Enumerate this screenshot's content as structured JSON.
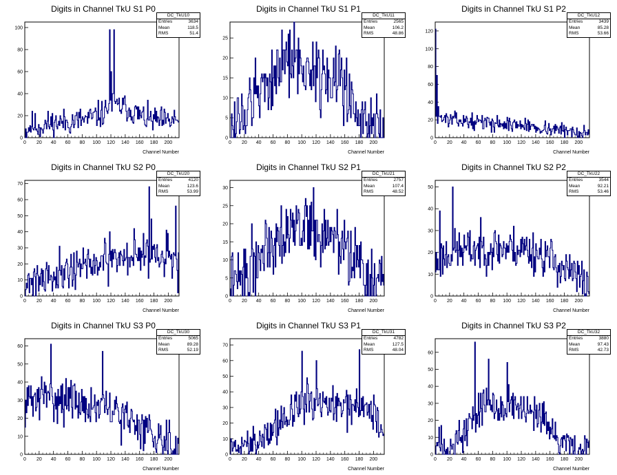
{
  "panel_x_label": "Channel Number",
  "stats_labels": [
    "Entries",
    "Mean",
    "RMS"
  ],
  "line_color": "#000080",
  "chart_data": [
    {
      "type": "histogram",
      "title": "Digits in Channel TkU S1 P0",
      "xlabel": "Channel Number",
      "stats": {
        "name": "DC_TkU10",
        "entries": "3634",
        "mean": "118.5",
        "rms": "51.4"
      },
      "xlim": [
        0,
        215
      ],
      "ylim": [
        0,
        105
      ],
      "xticks": [
        0,
        20,
        40,
        60,
        80,
        100,
        120,
        140,
        160,
        180,
        200
      ],
      "yticks": [
        0,
        20,
        40,
        60,
        80,
        100
      ],
      "spikes": [
        [
          118,
          98
        ],
        [
          124,
          98
        ],
        [
          120,
          60
        ],
        [
          122,
          40
        ]
      ],
      "points": [
        [
          0,
          5
        ],
        [
          10,
          12
        ],
        [
          20,
          10
        ],
        [
          30,
          12
        ],
        [
          40,
          13
        ],
        [
          50,
          14
        ],
        [
          60,
          14
        ],
        [
          70,
          15
        ],
        [
          80,
          16
        ],
        [
          90,
          17
        ],
        [
          100,
          20
        ],
        [
          110,
          22
        ],
        [
          118,
          30
        ],
        [
          130,
          28
        ],
        [
          140,
          28
        ],
        [
          150,
          24
        ],
        [
          160,
          20
        ],
        [
          170,
          17
        ],
        [
          180,
          16
        ],
        [
          190,
          15
        ],
        [
          200,
          14
        ],
        [
          210,
          17
        ],
        [
          215,
          16
        ]
      ],
      "noise": 6,
      "seed": 11
    },
    {
      "type": "histogram",
      "title": "Digits in Channel TkU S1 P1",
      "xlabel": "Channel Number",
      "stats": {
        "name": "DC_TkU11",
        "entries": "2565",
        "mean": "106.2",
        "rms": "48.86"
      },
      "xlim": [
        0,
        215
      ],
      "ylim": [
        0,
        29
      ],
      "xticks": [
        0,
        20,
        40,
        60,
        80,
        100,
        120,
        140,
        160,
        180,
        200
      ],
      "yticks": [
        0,
        5,
        10,
        15,
        20,
        25
      ],
      "spikes": [
        [
          72,
          27
        ]
      ],
      "points": [
        [
          0,
          3
        ],
        [
          10,
          4
        ],
        [
          20,
          6
        ],
        [
          30,
          8
        ],
        [
          40,
          11
        ],
        [
          50,
          14
        ],
        [
          60,
          16
        ],
        [
          70,
          18
        ],
        [
          80,
          19
        ],
        [
          90,
          19
        ],
        [
          100,
          18
        ],
        [
          110,
          17
        ],
        [
          120,
          17
        ],
        [
          130,
          16
        ],
        [
          140,
          15
        ],
        [
          150,
          14
        ],
        [
          160,
          12
        ],
        [
          170,
          10
        ],
        [
          180,
          7
        ],
        [
          190,
          4
        ],
        [
          200,
          3
        ],
        [
          210,
          2
        ],
        [
          215,
          2
        ]
      ],
      "noise": 4.5,
      "seed": 12
    },
    {
      "type": "histogram",
      "title": "Digits in Channel TkU S1 P2",
      "xlabel": "Channel Number",
      "stats": {
        "name": "DC_TkU12",
        "entries": "3439",
        "mean": "85.28",
        "rms": "53.66"
      },
      "xlim": [
        0,
        215
      ],
      "ylim": [
        0,
        130
      ],
      "xticks": [
        0,
        20,
        40,
        60,
        80,
        100,
        120,
        140,
        160,
        180,
        200
      ],
      "yticks": [
        0,
        20,
        40,
        60,
        80,
        100,
        120
      ],
      "spikes": [
        [
          0,
          122
        ],
        [
          2,
          70
        ],
        [
          4,
          35
        ]
      ],
      "points": [
        [
          0,
          25
        ],
        [
          10,
          22
        ],
        [
          20,
          20
        ],
        [
          30,
          20
        ],
        [
          40,
          19
        ],
        [
          50,
          18
        ],
        [
          60,
          18
        ],
        [
          70,
          17
        ],
        [
          80,
          16
        ],
        [
          90,
          16
        ],
        [
          100,
          15
        ],
        [
          110,
          15
        ],
        [
          120,
          14
        ],
        [
          130,
          13
        ],
        [
          140,
          12
        ],
        [
          150,
          11
        ],
        [
          160,
          10
        ],
        [
          170,
          9
        ],
        [
          180,
          8
        ],
        [
          190,
          7
        ],
        [
          200,
          6
        ],
        [
          210,
          5
        ],
        [
          215,
          3
        ]
      ],
      "noise": 4,
      "seed": 13
    },
    {
      "type": "histogram",
      "title": "Digits in Channel TkU S2 P0",
      "xlabel": "Channel Number",
      "stats": {
        "name": "DC_TkU20",
        "entries": "4120",
        "mean": "123.6",
        "rms": "53.99"
      },
      "xlim": [
        0,
        215
      ],
      "ylim": [
        0,
        72
      ],
      "xticks": [
        0,
        20,
        40,
        60,
        80,
        100,
        120,
        140,
        160,
        180,
        200
      ],
      "yticks": [
        0,
        10,
        20,
        30,
        40,
        50,
        60,
        70
      ],
      "spikes": [
        [
          173,
          68
        ],
        [
          210,
          56
        ],
        [
          176,
          48
        ]
      ],
      "points": [
        [
          0,
          8
        ],
        [
          10,
          10
        ],
        [
          20,
          12
        ],
        [
          30,
          13
        ],
        [
          40,
          14
        ],
        [
          50,
          15
        ],
        [
          60,
          17
        ],
        [
          70,
          18
        ],
        [
          80,
          19
        ],
        [
          90,
          19
        ],
        [
          100,
          20
        ],
        [
          110,
          21
        ],
        [
          120,
          22
        ],
        [
          130,
          23
        ],
        [
          140,
          25
        ],
        [
          150,
          26
        ],
        [
          160,
          27
        ],
        [
          170,
          28
        ],
        [
          180,
          27
        ],
        [
          190,
          26
        ],
        [
          200,
          24
        ],
        [
          210,
          22
        ],
        [
          215,
          18
        ]
      ],
      "noise": 6.5,
      "seed": 21
    },
    {
      "type": "histogram",
      "title": "Digits in Channel TkU S2 P1",
      "xlabel": "Channel Number",
      "stats": {
        "name": "DC_TkU21",
        "entries": "2757",
        "mean": "107.4",
        "rms": "48.52"
      },
      "xlim": [
        0,
        215
      ],
      "ylim": [
        0,
        32
      ],
      "xticks": [
        0,
        20,
        40,
        60,
        80,
        100,
        120,
        140,
        160,
        180,
        200
      ],
      "yticks": [
        0,
        5,
        10,
        15,
        20,
        25,
        30
      ],
      "spikes": [
        [
          116,
          30
        ]
      ],
      "points": [
        [
          0,
          3
        ],
        [
          10,
          4
        ],
        [
          20,
          6
        ],
        [
          30,
          8
        ],
        [
          40,
          11
        ],
        [
          50,
          14
        ],
        [
          60,
          16
        ],
        [
          70,
          18
        ],
        [
          80,
          19
        ],
        [
          90,
          19
        ],
        [
          100,
          19
        ],
        [
          110,
          19
        ],
        [
          120,
          18
        ],
        [
          130,
          17
        ],
        [
          140,
          16
        ],
        [
          150,
          15
        ],
        [
          160,
          13
        ],
        [
          170,
          11
        ],
        [
          180,
          8
        ],
        [
          190,
          5
        ],
        [
          200,
          3
        ],
        [
          210,
          2
        ],
        [
          215,
          2
        ]
      ],
      "noise": 4.5,
      "seed": 22
    },
    {
      "type": "histogram",
      "title": "Digits in Channel TkU S2 P2",
      "xlabel": "Channel Number",
      "stats": {
        "name": "DC_TkU22",
        "entries": "3544",
        "mean": "92.21",
        "rms": "53.46"
      },
      "xlim": [
        0,
        215
      ],
      "ylim": [
        0,
        53
      ],
      "xticks": [
        0,
        20,
        40,
        60,
        80,
        100,
        120,
        140,
        160,
        180,
        200
      ],
      "yticks": [
        0,
        10,
        20,
        30,
        40,
        50
      ],
      "spikes": [
        [
          24,
          50
        ],
        [
          6,
          39
        ]
      ],
      "points": [
        [
          0,
          14
        ],
        [
          10,
          18
        ],
        [
          20,
          20
        ],
        [
          30,
          21
        ],
        [
          40,
          21
        ],
        [
          50,
          21
        ],
        [
          60,
          22
        ],
        [
          70,
          22
        ],
        [
          80,
          22
        ],
        [
          90,
          22
        ],
        [
          100,
          22
        ],
        [
          110,
          22
        ],
        [
          120,
          22
        ],
        [
          130,
          21
        ],
        [
          140,
          20
        ],
        [
          150,
          19
        ],
        [
          160,
          17
        ],
        [
          170,
          15
        ],
        [
          180,
          12
        ],
        [
          190,
          10
        ],
        [
          200,
          8
        ],
        [
          210,
          6
        ],
        [
          215,
          3
        ]
      ],
      "noise": 5,
      "seed": 23
    },
    {
      "type": "histogram",
      "title": "Digits in Channel TkU S3 P0",
      "xlabel": "Channel Number",
      "stats": {
        "name": "DC_TkU30",
        "entries": "5065",
        "mean": "89.28",
        "rms": "52.19"
      },
      "xlim": [
        0,
        215
      ],
      "ylim": [
        0,
        64
      ],
      "xticks": [
        0,
        20,
        40,
        60,
        80,
        100,
        120,
        140,
        160,
        180,
        200
      ],
      "yticks": [
        0,
        10,
        20,
        30,
        40,
        50,
        60
      ],
      "spikes": [
        [
          36,
          61
        ],
        [
          108,
          57
        ]
      ],
      "points": [
        [
          0,
          28
        ],
        [
          10,
          30
        ],
        [
          20,
          31
        ],
        [
          30,
          32
        ],
        [
          40,
          32
        ],
        [
          50,
          31
        ],
        [
          60,
          30
        ],
        [
          70,
          29
        ],
        [
          80,
          28
        ],
        [
          90,
          27
        ],
        [
          100,
          26
        ],
        [
          110,
          25
        ],
        [
          120,
          24
        ],
        [
          130,
          22
        ],
        [
          140,
          20
        ],
        [
          150,
          18
        ],
        [
          160,
          16
        ],
        [
          170,
          14
        ],
        [
          180,
          12
        ],
        [
          190,
          10
        ],
        [
          200,
          8
        ],
        [
          210,
          6
        ],
        [
          215,
          3
        ]
      ],
      "noise": 6,
      "seed": 31
    },
    {
      "type": "histogram",
      "title": "Digits in Channel TkU S3 P1",
      "xlabel": "Channel Number",
      "stats": {
        "name": "DC_TkU31",
        "entries": "4782",
        "mean": "127.5",
        "rms": "48.04"
      },
      "xlim": [
        0,
        215
      ],
      "ylim": [
        0,
        74
      ],
      "xticks": [
        0,
        20,
        40,
        60,
        80,
        100,
        120,
        140,
        160,
        180,
        200
      ],
      "yticks": [
        0,
        10,
        20,
        30,
        40,
        50,
        60,
        70
      ],
      "spikes": [
        [
          100,
          66
        ],
        [
          120,
          60
        ],
        [
          180,
          67
        ]
      ],
      "points": [
        [
          0,
          3
        ],
        [
          10,
          4
        ],
        [
          20,
          6
        ],
        [
          30,
          8
        ],
        [
          40,
          10
        ],
        [
          50,
          13
        ],
        [
          60,
          16
        ],
        [
          70,
          20
        ],
        [
          80,
          24
        ],
        [
          90,
          28
        ],
        [
          100,
          32
        ],
        [
          110,
          33
        ],
        [
          120,
          33
        ],
        [
          130,
          32
        ],
        [
          140,
          31
        ],
        [
          150,
          30
        ],
        [
          160,
          30
        ],
        [
          170,
          31
        ],
        [
          180,
          32
        ],
        [
          190,
          30
        ],
        [
          200,
          25
        ],
        [
          210,
          18
        ],
        [
          215,
          12
        ]
      ],
      "noise": 6,
      "seed": 32
    },
    {
      "type": "histogram",
      "title": "Digits in Channel TkU S3 P2",
      "xlabel": "Channel Number",
      "stats": {
        "name": "DC_TkU32",
        "entries": "3880",
        "mean": "97.43",
        "rms": "42.73"
      },
      "xlim": [
        0,
        215
      ],
      "ylim": [
        0,
        68
      ],
      "xticks": [
        0,
        20,
        40,
        60,
        80,
        100,
        120,
        140,
        160,
        180,
        200
      ],
      "yticks": [
        0,
        10,
        20,
        30,
        40,
        50,
        60
      ],
      "spikes": [
        [
          55,
          66
        ],
        [
          74,
          56
        ],
        [
          100,
          54
        ]
      ],
      "points": [
        [
          0,
          4
        ],
        [
          10,
          5
        ],
        [
          20,
          6
        ],
        [
          30,
          8
        ],
        [
          40,
          12
        ],
        [
          50,
          20
        ],
        [
          60,
          26
        ],
        [
          70,
          29
        ],
        [
          80,
          30
        ],
        [
          90,
          30
        ],
        [
          100,
          29
        ],
        [
          110,
          28
        ],
        [
          120,
          26
        ],
        [
          130,
          24
        ],
        [
          140,
          21
        ],
        [
          150,
          18
        ],
        [
          160,
          14
        ],
        [
          170,
          10
        ],
        [
          180,
          7
        ],
        [
          190,
          5
        ],
        [
          200,
          3
        ],
        [
          210,
          2
        ],
        [
          215,
          1
        ]
      ],
      "noise": 6,
      "seed": 33
    }
  ]
}
